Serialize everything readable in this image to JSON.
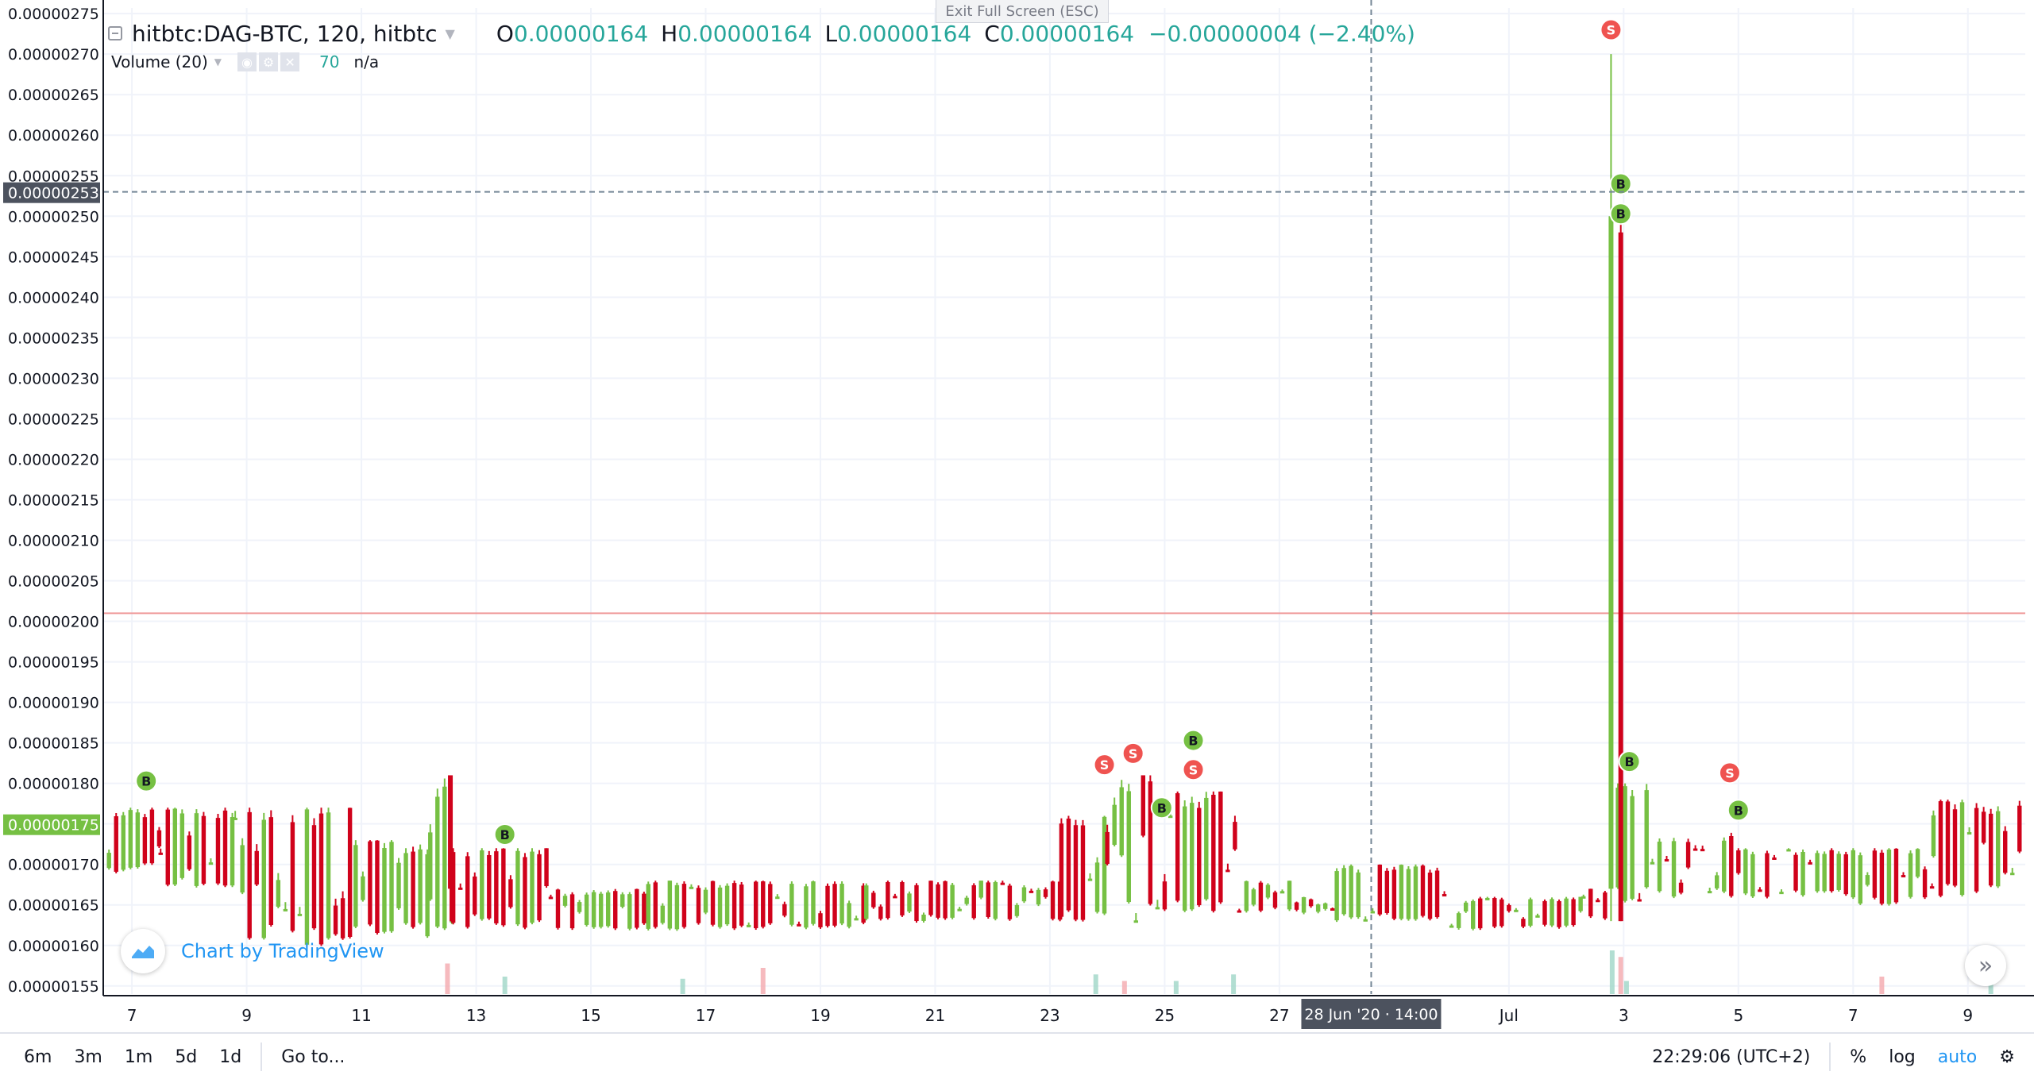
{
  "legend": {
    "symbol": "hitbtc:DAG-BTC, 120, hitbtc",
    "open_label": "O",
    "open_value": "0.00000164",
    "high_label": "H",
    "high_value": "0.00000164",
    "low_label": "L",
    "low_value": "0.00000164",
    "close_label": "C",
    "close_value": "0.00000164",
    "change": "−0.00000004 (−2.40%)"
  },
  "volume_legend": {
    "label": "Volume (20)",
    "value": "70",
    "na": "n/a"
  },
  "exit_fullscreen": "Exit Full Screen (ESC)",
  "credit": "Chart by TradingView",
  "bottom_bar": {
    "ranges": [
      "6m",
      "3m",
      "1m",
      "5d",
      "1d"
    ],
    "goto": "Go to...",
    "clock": "22:29:06 (UTC+2)",
    "percent": "%",
    "log": "log",
    "auto": "auto"
  },
  "colors": {
    "up": "#76c043",
    "down": "#d0021b",
    "grid": "#f0f3fa",
    "axis_text": "#131722",
    "price_tag_dark": "#4c525e",
    "price_tag_green": "#76c043",
    "crosshair": "#758696",
    "red_line": "#ef9a9a",
    "buy": "#76c043",
    "sell": "#ef5350"
  },
  "chart_data": {
    "type": "candlestick",
    "title": "hitbtc:DAG-BTC, 120, hitbtc",
    "y_ticks": [
      "0.00000155",
      "0.00000160",
      "0.00000165",
      "0.00000170",
      "0.00000175",
      "0.00000180",
      "0.00000185",
      "0.00000190",
      "0.00000195",
      "0.00000200",
      "0.00000205",
      "0.00000210",
      "0.00000215",
      "0.00000220",
      "0.00000225",
      "0.00000230",
      "0.00000235",
      "0.00000240",
      "0.00000245",
      "0.00000250",
      "0.00000255",
      "0.00000260",
      "0.00000265",
      "0.00000270",
      "0.00000275"
    ],
    "ylim": [
      1.54e-06,
      2.757e-06
    ],
    "x_ticks": [
      {
        "label": "7",
        "day": 7
      },
      {
        "label": "9",
        "day": 9
      },
      {
        "label": "11",
        "day": 11
      },
      {
        "label": "13",
        "day": 13
      },
      {
        "label": "15",
        "day": 15
      },
      {
        "label": "17",
        "day": 17
      },
      {
        "label": "19",
        "day": 19
      },
      {
        "label": "21",
        "day": 21
      },
      {
        "label": "23",
        "day": 23
      },
      {
        "label": "25",
        "day": 25
      },
      {
        "label": "27",
        "day": 27
      },
      {
        "label": "Jul",
        "day": 31
      },
      {
        "label": "3",
        "day": 33
      },
      {
        "label": "5",
        "day": 35
      },
      {
        "label": "7",
        "day": 37
      },
      {
        "label": "9",
        "day": 39
      }
    ],
    "x_day_range": [
      6.5,
      40.0
    ],
    "crosshair": {
      "time_label": "28 Jun '20 · 14:00",
      "day": 28.6,
      "price_label": "0.00000253",
      "price": 2.53e-06
    },
    "current_price": {
      "label": "0.00000175",
      "price": 1.75e-06
    },
    "red_line_price": 2.01e-06,
    "segments": [
      {
        "from": 6.6,
        "to": 7.5,
        "lo": 1.69e-06,
        "hi": 1.77e-06
      },
      {
        "from": 7.5,
        "to": 8.8,
        "lo": 1.67e-06,
        "hi": 1.77e-06
      },
      {
        "from": 8.8,
        "to": 10.9,
        "lo": 1.6e-06,
        "hi": 1.77e-06
      },
      {
        "from": 10.9,
        "to": 12.2,
        "lo": 1.61e-06,
        "hi": 1.73e-06
      },
      {
        "from": 12.2,
        "to": 12.6,
        "lo": 1.61e-06,
        "hi": 1.81e-06
      },
      {
        "from": 12.6,
        "to": 14.3,
        "lo": 1.62e-06,
        "hi": 1.72e-06
      },
      {
        "from": 14.3,
        "to": 16.0,
        "lo": 1.62e-06,
        "hi": 1.67e-06
      },
      {
        "from": 16.0,
        "to": 17.0,
        "lo": 1.62e-06,
        "hi": 1.68e-06
      },
      {
        "from": 17.0,
        "to": 19.8,
        "lo": 1.62e-06,
        "hi": 1.68e-06
      },
      {
        "from": 19.8,
        "to": 23.2,
        "lo": 1.63e-06,
        "hi": 1.68e-06
      },
      {
        "from": 23.2,
        "to": 24.0,
        "lo": 1.63e-06,
        "hi": 1.76e-06
      },
      {
        "from": 24.0,
        "to": 25.1,
        "lo": 1.63e-06,
        "hi": 1.81e-06
      },
      {
        "from": 25.1,
        "to": 26.3,
        "lo": 1.64e-06,
        "hi": 1.79e-06
      },
      {
        "from": 26.3,
        "to": 27.3,
        "lo": 1.64e-06,
        "hi": 1.68e-06
      },
      {
        "from": 27.3,
        "to": 28.0,
        "lo": 1.64e-06,
        "hi": 1.66e-06
      },
      {
        "from": 28.0,
        "to": 30.0,
        "lo": 1.63e-06,
        "hi": 1.7e-06
      },
      {
        "from": 30.0,
        "to": 32.3,
        "lo": 1.62e-06,
        "hi": 1.66e-06
      },
      {
        "from": 32.3,
        "to": 32.75,
        "lo": 1.63e-06,
        "hi": 1.67e-06
      },
      {
        "from": 32.9,
        "to": 33.5,
        "lo": 1.65e-06,
        "hi": 1.8e-06
      },
      {
        "from": 33.5,
        "to": 35.0,
        "lo": 1.66e-06,
        "hi": 1.74e-06
      },
      {
        "from": 35.0,
        "to": 37.0,
        "lo": 1.66e-06,
        "hi": 1.72e-06
      },
      {
        "from": 37.0,
        "to": 38.4,
        "lo": 1.65e-06,
        "hi": 1.72e-06
      },
      {
        "from": 38.4,
        "to": 40.0,
        "lo": 1.66e-06,
        "hi": 1.78e-06
      }
    ],
    "spikes": [
      {
        "day": 32.78,
        "open": 1.67e-06,
        "high": 2.7e-06,
        "low": 1.63e-06,
        "close": 2.5e-06,
        "dir": "up"
      },
      {
        "day": 32.95,
        "open": 2.48e-06,
        "high": 2.49e-06,
        "low": 1.63e-06,
        "close": 1.63e-06,
        "dir": "down"
      },
      {
        "day": 12.55,
        "open": 1.81e-06,
        "high": 1.81e-06,
        "low": 1.63e-06,
        "close": 1.67e-06,
        "dir": "down"
      }
    ],
    "markers": [
      {
        "type": "B",
        "day": 7.25,
        "price": 1.803e-06
      },
      {
        "type": "B",
        "day": 13.5,
        "price": 1.737e-06
      },
      {
        "type": "S",
        "day": 23.95,
        "price": 1.823e-06
      },
      {
        "type": "S",
        "day": 24.45,
        "price": 1.837e-06
      },
      {
        "type": "B",
        "day": 24.95,
        "price": 1.77e-06
      },
      {
        "type": "B",
        "day": 25.5,
        "price": 1.853e-06
      },
      {
        "type": "S",
        "day": 25.5,
        "price": 1.817e-06
      },
      {
        "type": "S",
        "day": 32.78,
        "price": 2.73e-06
      },
      {
        "type": "B",
        "day": 32.95,
        "price": 2.54e-06
      },
      {
        "type": "B",
        "day": 32.95,
        "price": 2.503e-06
      },
      {
        "type": "B",
        "day": 33.1,
        "price": 1.827e-06
      },
      {
        "type": "S",
        "day": 34.85,
        "price": 1.813e-06
      },
      {
        "type": "B",
        "day": 35.0,
        "price": 1.767e-06
      }
    ],
    "volume_spikes": [
      {
        "day": 12.5,
        "rel": 0.7,
        "dir": "down"
      },
      {
        "day": 13.5,
        "rel": 0.4,
        "dir": "up"
      },
      {
        "day": 16.6,
        "rel": 0.35,
        "dir": "up"
      },
      {
        "day": 18.0,
        "rel": 0.6,
        "dir": "down"
      },
      {
        "day": 23.8,
        "rel": 0.45,
        "dir": "up"
      },
      {
        "day": 24.3,
        "rel": 0.3,
        "dir": "down"
      },
      {
        "day": 25.2,
        "rel": 0.3,
        "dir": "up"
      },
      {
        "day": 26.2,
        "rel": 0.45,
        "dir": "up"
      },
      {
        "day": 32.8,
        "rel": 1.0,
        "dir": "up"
      },
      {
        "day": 32.95,
        "rel": 0.85,
        "dir": "down"
      },
      {
        "day": 33.05,
        "rel": 0.3,
        "dir": "up"
      },
      {
        "day": 37.5,
        "rel": 0.4,
        "dir": "down"
      },
      {
        "day": 39.4,
        "rel": 0.35,
        "dir": "up"
      }
    ]
  }
}
